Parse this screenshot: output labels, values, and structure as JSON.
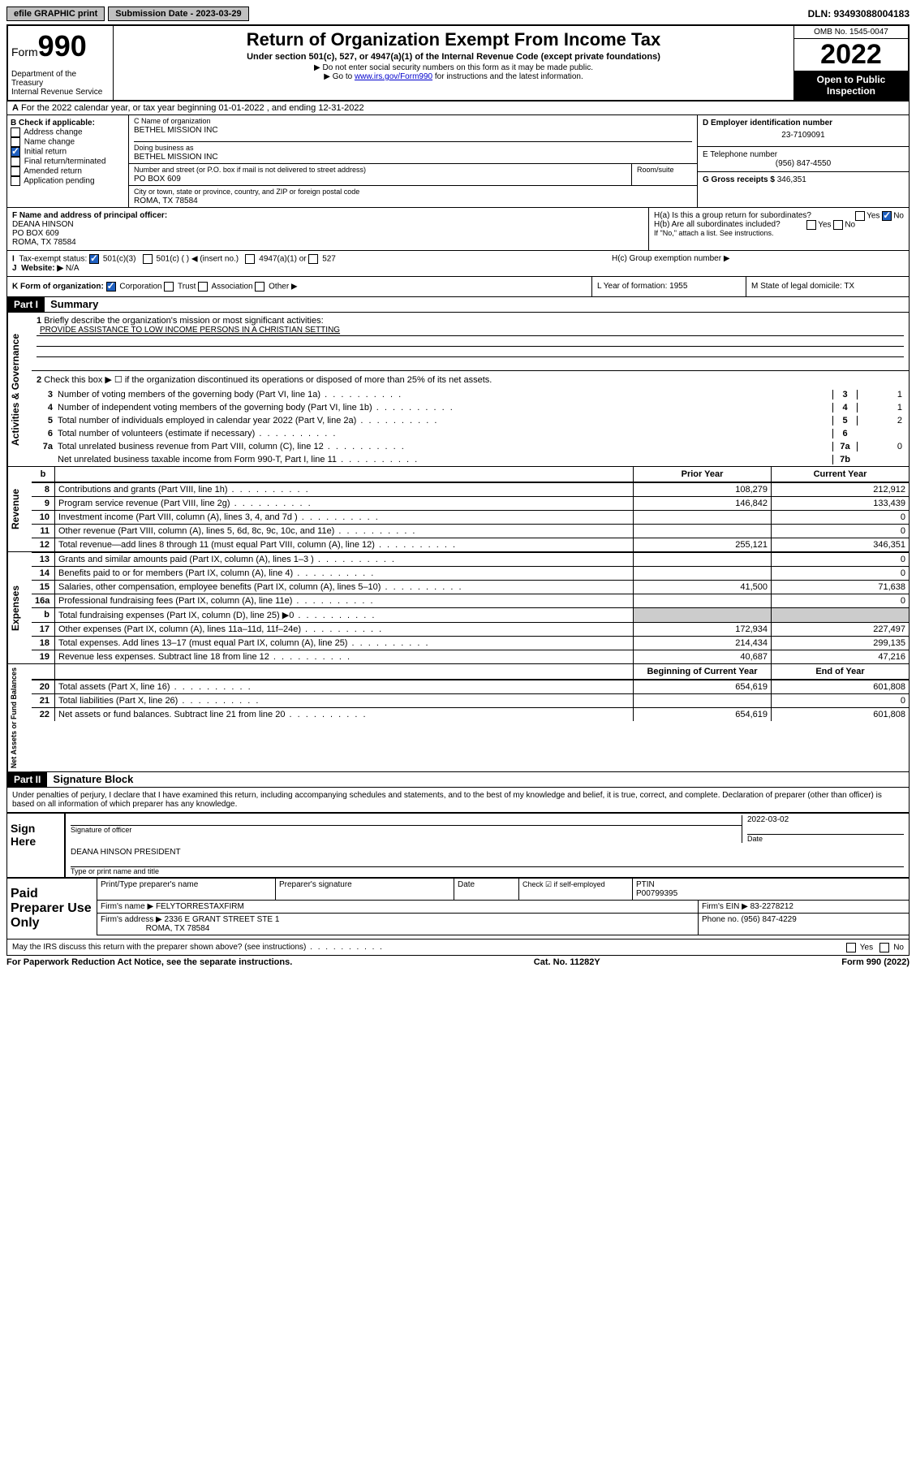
{
  "topbar": {
    "efile": "efile GRAPHIC print",
    "sub_label": "Submission Date - 2023-03-29",
    "dln": "DLN: 93493088004183"
  },
  "header": {
    "form_word": "Form",
    "form_num": "990",
    "dept": "Department of the Treasury",
    "irs": "Internal Revenue Service",
    "title": "Return of Organization Exempt From Income Tax",
    "sub1": "Under section 501(c), 527, or 4947(a)(1) of the Internal Revenue Code (except private foundations)",
    "sub2": "▶ Do not enter social security numbers on this form as it may be made public.",
    "sub3_pre": "▶ Go to ",
    "sub3_link": "www.irs.gov/Form990",
    "sub3_post": " for instructions and the latest information.",
    "omb": "OMB No. 1545-0047",
    "year": "2022",
    "open": "Open to Public Inspection"
  },
  "line_a": "For the 2022 calendar year, or tax year beginning 01-01-2022    , and ending 12-31-2022",
  "box_b": {
    "title": "B Check if applicable:",
    "opts": [
      "Address change",
      "Name change",
      "Initial return",
      "Final return/terminated",
      "Amended return",
      "Application pending"
    ],
    "checked_idx": 2
  },
  "box_c": {
    "name_lbl": "C Name of organization",
    "name": "BETHEL MISSION INC",
    "dba_lbl": "Doing business as",
    "dba": "BETHEL MISSION INC",
    "addr_lbl": "Number and street (or P.O. box if mail is not delivered to street address)",
    "room_lbl": "Room/suite",
    "addr": "PO BOX 609",
    "city_lbl": "City or town, state or province, country, and ZIP or foreign postal code",
    "city": "ROMA, TX  78584"
  },
  "box_d": {
    "lbl": "D Employer identification number",
    "val": "23-7109091"
  },
  "box_e": {
    "lbl": "E Telephone number",
    "val": "(956) 847-4550"
  },
  "box_g": {
    "lbl": "G Gross receipts $",
    "val": "346,351"
  },
  "box_f": {
    "lbl": "F Name and address of principal officer:",
    "l1": "DEANA HINSON",
    "l2": "PO BOX 609",
    "l3": "ROMA, TX  78584"
  },
  "box_h": {
    "ha": "H(a)  Is this a group return for subordinates?",
    "ha_no": "No",
    "hb": "H(b)  Are all subordinates included?",
    "hb_note": "If \"No,\" attach a list. See instructions.",
    "hc": "H(c)  Group exemption number ▶"
  },
  "box_i": {
    "lbl": "Tax-exempt status:",
    "o1": "501(c)(3)",
    "o2": "501(c) (  ) ◀ (insert no.)",
    "o3": "4947(a)(1) or",
    "o4": "527"
  },
  "box_j": {
    "lbl": "Website: ▶",
    "val": "N/A"
  },
  "box_k": {
    "lbl": "K Form of organization:",
    "o1": "Corporation",
    "o2": "Trust",
    "o3": "Association",
    "o4": "Other ▶"
  },
  "box_l": {
    "lbl": "L Year of formation: 1955"
  },
  "box_m": {
    "lbl": "M State of legal domicile: TX"
  },
  "part1": {
    "hdr": "Part I",
    "title": "Summary",
    "q1": "Briefly describe the organization's mission or most significant activities:",
    "mission": "PROVIDE ASSISTANCE TO LOW INCOME PERSONS IN A CHRISTIAN SETTING",
    "q2": "Check this box ▶ ☐  if the organization discontinued its operations or disposed of more than 25% of its net assets.",
    "tabs": {
      "ag": "Activities & Governance",
      "rev": "Revenue",
      "exp": "Expenses",
      "net": "Net Assets or Fund Balances"
    },
    "lines_top": [
      {
        "n": "3",
        "t": "Number of voting members of the governing body (Part VI, line 1a)",
        "box": "3",
        "v": "1"
      },
      {
        "n": "4",
        "t": "Number of independent voting members of the governing body (Part VI, line 1b)",
        "box": "4",
        "v": "1"
      },
      {
        "n": "5",
        "t": "Total number of individuals employed in calendar year 2022 (Part V, line 2a)",
        "box": "5",
        "v": "2"
      },
      {
        "n": "6",
        "t": "Total number of volunteers (estimate if necessary)",
        "box": "6",
        "v": ""
      },
      {
        "n": "7a",
        "t": "Total unrelated business revenue from Part VIII, column (C), line 12",
        "box": "7a",
        "v": "0"
      },
      {
        "n": "",
        "t": "Net unrelated business taxable income from Form 990-T, Part I, line 11",
        "box": "7b",
        "v": ""
      }
    ],
    "col_prior": "Prior Year",
    "col_curr": "Current Year",
    "col_beg": "Beginning of Current Year",
    "col_end": "End of Year",
    "rev": [
      {
        "n": "8",
        "t": "Contributions and grants (Part VIII, line 1h)",
        "p": "108,279",
        "c": "212,912"
      },
      {
        "n": "9",
        "t": "Program service revenue (Part VIII, line 2g)",
        "p": "146,842",
        "c": "133,439"
      },
      {
        "n": "10",
        "t": "Investment income (Part VIII, column (A), lines 3, 4, and 7d )",
        "p": "",
        "c": "0"
      },
      {
        "n": "11",
        "t": "Other revenue (Part VIII, column (A), lines 5, 6d, 8c, 9c, 10c, and 11e)",
        "p": "",
        "c": "0"
      },
      {
        "n": "12",
        "t": "Total revenue—add lines 8 through 11 (must equal Part VIII, column (A), line 12)",
        "p": "255,121",
        "c": "346,351"
      }
    ],
    "exp": [
      {
        "n": "13",
        "t": "Grants and similar amounts paid (Part IX, column (A), lines 1–3 )",
        "p": "",
        "c": "0"
      },
      {
        "n": "14",
        "t": "Benefits paid to or for members (Part IX, column (A), line 4)",
        "p": "",
        "c": "0"
      },
      {
        "n": "15",
        "t": "Salaries, other compensation, employee benefits (Part IX, column (A), lines 5–10)",
        "p": "41,500",
        "c": "71,638"
      },
      {
        "n": "16a",
        "t": "Professional fundraising fees (Part IX, column (A), line 11e)",
        "p": "",
        "c": "0"
      },
      {
        "n": "b",
        "t": "Total fundraising expenses (Part IX, column (D), line 25) ▶0",
        "p": "—",
        "c": "—"
      },
      {
        "n": "17",
        "t": "Other expenses (Part IX, column (A), lines 11a–11d, 11f–24e)",
        "p": "172,934",
        "c": "227,497"
      },
      {
        "n": "18",
        "t": "Total expenses. Add lines 13–17 (must equal Part IX, column (A), line 25)",
        "p": "214,434",
        "c": "299,135"
      },
      {
        "n": "19",
        "t": "Revenue less expenses. Subtract line 18 from line 12",
        "p": "40,687",
        "c": "47,216"
      }
    ],
    "net": [
      {
        "n": "20",
        "t": "Total assets (Part X, line 16)",
        "p": "654,619",
        "c": "601,808"
      },
      {
        "n": "21",
        "t": "Total liabilities (Part X, line 26)",
        "p": "",
        "c": "0"
      },
      {
        "n": "22",
        "t": "Net assets or fund balances. Subtract line 21 from line 20",
        "p": "654,619",
        "c": "601,808"
      }
    ]
  },
  "part2": {
    "hdr": "Part II",
    "title": "Signature Block",
    "decl": "Under penalties of perjury, I declare that I have examined this return, including accompanying schedules and statements, and to the best of my knowledge and belief, it is true, correct, and complete. Declaration of preparer (other than officer) is based on all information of which preparer has any knowledge.",
    "sign_here": "Sign Here",
    "sig_lbl": "Signature of officer",
    "date_lbl": "Date",
    "date_val": "2022-03-02",
    "officer": "DEANA HINSON  PRESIDENT",
    "officer_lbl": "Type or print name and title",
    "paid": "Paid Preparer Use Only",
    "pname_lbl": "Print/Type preparer's name",
    "psig_lbl": "Preparer's signature",
    "pdate_lbl": "Date",
    "pcheck": "Check ☑ if self-employed",
    "ptin_lbl": "PTIN",
    "ptin": "P00799395",
    "firm_lbl": "Firm's name    ▶",
    "firm": "FELYTORRESTAXFIRM",
    "ein_lbl": "Firm's EIN ▶",
    "ein": "83-2278212",
    "faddr_lbl": "Firm's address ▶",
    "faddr1": "2336 E GRANT STREET STE 1",
    "faddr2": "ROMA, TX  78584",
    "phone_lbl": "Phone no.",
    "phone": "(956) 847-4229",
    "discuss": "May the IRS discuss this return with the preparer shown above? (see instructions)",
    "yes": "Yes",
    "no": "No"
  },
  "footer": {
    "l": "For Paperwork Reduction Act Notice, see the separate instructions.",
    "m": "Cat. No. 11282Y",
    "r": "Form 990 (2022)"
  }
}
